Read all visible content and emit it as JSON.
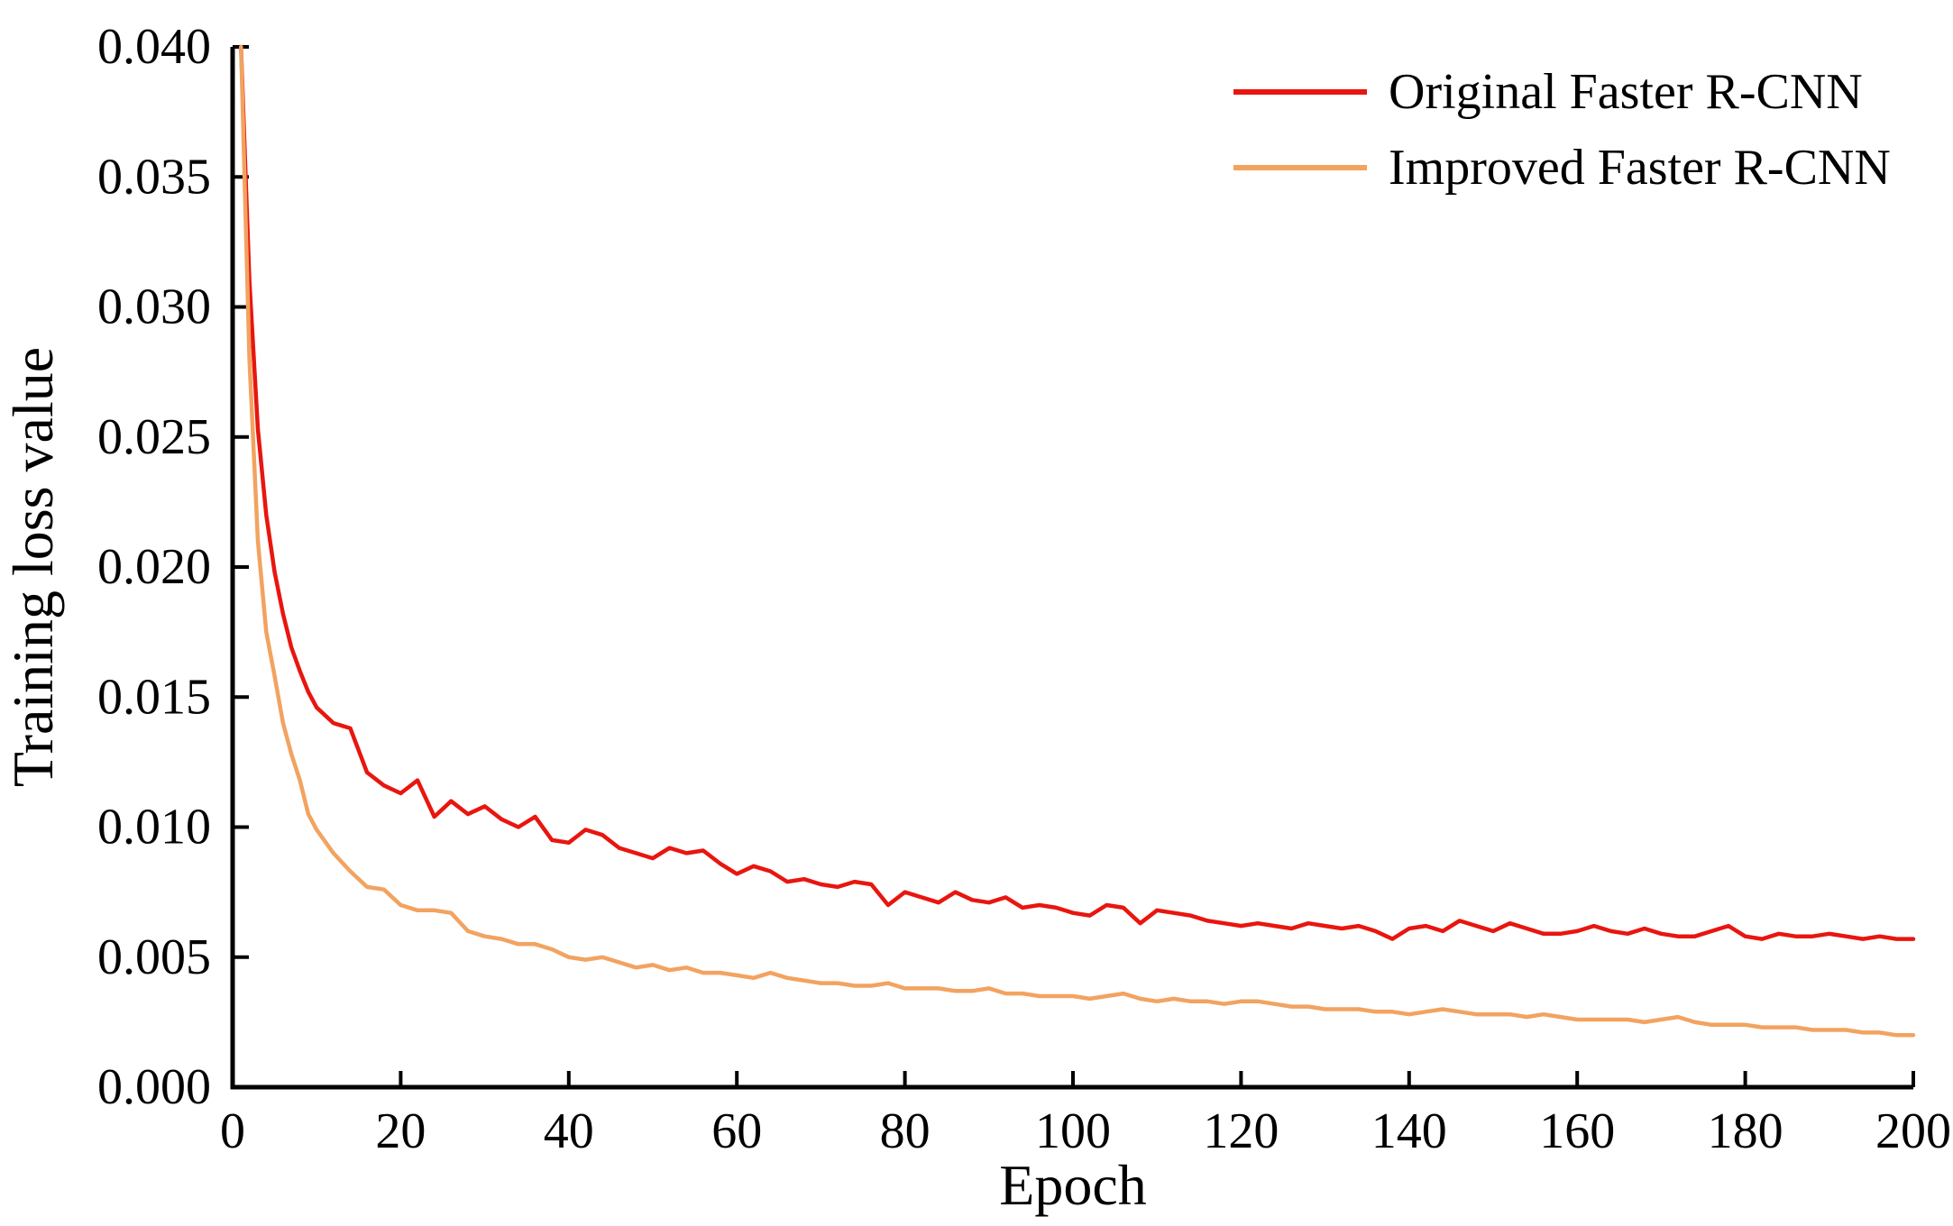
{
  "page": {
    "background": "#ffffff",
    "text_color": "#000000"
  },
  "chart_data": {
    "type": "line",
    "title": "",
    "xlabel": "Epoch",
    "ylabel": "Training loss value",
    "xlim": [
      0,
      200
    ],
    "ylim": [
      0.0,
      0.04
    ],
    "grid": false,
    "legend_position": "top-right-inside",
    "axis_color": "#000000",
    "x_ticks": [
      0,
      20,
      40,
      60,
      80,
      100,
      120,
      140,
      160,
      180,
      200
    ],
    "x_tick_labels": [
      "0",
      "20",
      "40",
      "60",
      "80",
      "100",
      "120",
      "140",
      "160",
      "180",
      "200"
    ],
    "y_ticks": [
      0.0,
      0.005,
      0.01,
      0.015,
      0.02,
      0.025,
      0.03,
      0.035,
      0.04
    ],
    "y_tick_labels": [
      "0.000",
      "0.005",
      "0.010",
      "0.015",
      "0.020",
      "0.025",
      "0.030",
      "0.035",
      "0.040"
    ],
    "x": [
      1,
      2,
      3,
      4,
      5,
      6,
      7,
      8,
      9,
      10,
      12,
      14,
      16,
      18,
      20,
      22,
      24,
      26,
      28,
      30,
      32,
      34,
      36,
      38,
      40,
      42,
      44,
      46,
      48,
      50,
      52,
      54,
      56,
      58,
      60,
      62,
      64,
      66,
      68,
      70,
      72,
      74,
      76,
      78,
      80,
      82,
      84,
      86,
      88,
      90,
      92,
      94,
      96,
      98,
      100,
      102,
      104,
      106,
      108,
      110,
      112,
      114,
      116,
      118,
      120,
      122,
      124,
      126,
      128,
      130,
      132,
      134,
      136,
      138,
      140,
      142,
      144,
      146,
      148,
      150,
      152,
      154,
      156,
      158,
      160,
      162,
      164,
      166,
      168,
      170,
      172,
      174,
      176,
      178,
      180,
      182,
      184,
      186,
      188,
      190,
      192,
      194,
      196,
      198,
      200
    ],
    "series": [
      {
        "name": "Original Faster R-CNN",
        "color": "#e8160f",
        "values": [
          0.04,
          0.031,
          0.0253,
          0.022,
          0.0198,
          0.0182,
          0.0169,
          0.016,
          0.0152,
          0.0146,
          0.014,
          0.0138,
          0.0121,
          0.0116,
          0.0113,
          0.0118,
          0.0104,
          0.011,
          0.0105,
          0.0108,
          0.0103,
          0.01,
          0.0104,
          0.0095,
          0.0094,
          0.0099,
          0.0097,
          0.0092,
          0.009,
          0.0088,
          0.0092,
          0.009,
          0.0091,
          0.0086,
          0.0082,
          0.0085,
          0.0083,
          0.0079,
          0.008,
          0.0078,
          0.0077,
          0.0079,
          0.0078,
          0.007,
          0.0075,
          0.0073,
          0.0071,
          0.0075,
          0.0072,
          0.0071,
          0.0073,
          0.0069,
          0.007,
          0.0069,
          0.0067,
          0.0066,
          0.007,
          0.0069,
          0.0063,
          0.0068,
          0.0067,
          0.0066,
          0.0064,
          0.0063,
          0.0062,
          0.0063,
          0.0062,
          0.0061,
          0.0063,
          0.0062,
          0.0061,
          0.0062,
          0.006,
          0.0057,
          0.0061,
          0.0062,
          0.006,
          0.0064,
          0.0062,
          0.006,
          0.0063,
          0.0061,
          0.0059,
          0.0059,
          0.006,
          0.0062,
          0.006,
          0.0059,
          0.0061,
          0.0059,
          0.0058,
          0.0058,
          0.006,
          0.0062,
          0.0058,
          0.0057,
          0.0059,
          0.0058,
          0.0058,
          0.0059,
          0.0058,
          0.0057,
          0.0058,
          0.0057,
          0.0057
        ]
      },
      {
        "name": "Improved Faster R-CNN",
        "color": "#f2a360",
        "values": [
          0.04,
          0.028,
          0.021,
          0.0175,
          0.0158,
          0.014,
          0.0128,
          0.0118,
          0.0105,
          0.0099,
          0.009,
          0.0083,
          0.0077,
          0.0076,
          0.007,
          0.0068,
          0.0068,
          0.0067,
          0.006,
          0.0058,
          0.0057,
          0.0055,
          0.0055,
          0.0053,
          0.005,
          0.0049,
          0.005,
          0.0048,
          0.0046,
          0.0047,
          0.0045,
          0.0046,
          0.0044,
          0.0044,
          0.0043,
          0.0042,
          0.0044,
          0.0042,
          0.0041,
          0.004,
          0.004,
          0.0039,
          0.0039,
          0.004,
          0.0038,
          0.0038,
          0.0038,
          0.0037,
          0.0037,
          0.0038,
          0.0036,
          0.0036,
          0.0035,
          0.0035,
          0.0035,
          0.0034,
          0.0035,
          0.0036,
          0.0034,
          0.0033,
          0.0034,
          0.0033,
          0.0033,
          0.0032,
          0.0033,
          0.0033,
          0.0032,
          0.0031,
          0.0031,
          0.003,
          0.003,
          0.003,
          0.0029,
          0.0029,
          0.0028,
          0.0029,
          0.003,
          0.0029,
          0.0028,
          0.0028,
          0.0028,
          0.0027,
          0.0028,
          0.0027,
          0.0026,
          0.0026,
          0.0026,
          0.0026,
          0.0025,
          0.0026,
          0.0027,
          0.0025,
          0.0024,
          0.0024,
          0.0024,
          0.0023,
          0.0023,
          0.0023,
          0.0022,
          0.0022,
          0.0022,
          0.0021,
          0.0021,
          0.002,
          0.002
        ]
      }
    ]
  }
}
